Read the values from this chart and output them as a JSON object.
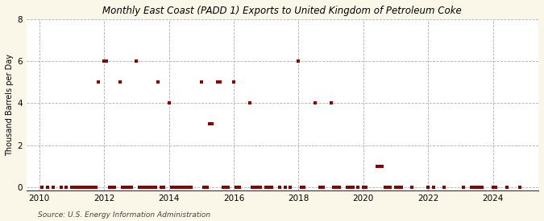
{
  "title": "East Coast (PADD 1) Exports to United Kingdom of Petroleum Coke",
  "title_prefix": "Monthly ",
  "ylabel": "Thousand Barrels per Day",
  "source": "Source: U.S. Energy Information Administration",
  "background_color": "#faf6e8",
  "plot_background_color": "#ffffff",
  "marker_color": "#8b0000",
  "marker_size": 3.5,
  "xlim": [
    2009.6,
    2025.4
  ],
  "ylim": [
    -0.15,
    8
  ],
  "yticks": [
    0,
    2,
    4,
    6,
    8
  ],
  "xticks": [
    2010,
    2012,
    2014,
    2016,
    2018,
    2020,
    2022,
    2024
  ],
  "data_points": [
    [
      2010.08,
      0
    ],
    [
      2010.25,
      0
    ],
    [
      2010.42,
      0
    ],
    [
      2010.67,
      0
    ],
    [
      2010.83,
      0
    ],
    [
      2011.0,
      0
    ],
    [
      2011.08,
      0
    ],
    [
      2011.17,
      0
    ],
    [
      2011.25,
      0
    ],
    [
      2011.33,
      0
    ],
    [
      2011.42,
      0
    ],
    [
      2011.5,
      0
    ],
    [
      2011.58,
      0
    ],
    [
      2011.67,
      0
    ],
    [
      2011.75,
      0
    ],
    [
      2011.83,
      5
    ],
    [
      2012.0,
      6
    ],
    [
      2012.08,
      6
    ],
    [
      2012.17,
      0
    ],
    [
      2012.25,
      0
    ],
    [
      2012.33,
      0
    ],
    [
      2012.5,
      5
    ],
    [
      2012.58,
      0
    ],
    [
      2012.67,
      0
    ],
    [
      2012.75,
      0
    ],
    [
      2012.83,
      0
    ],
    [
      2013.0,
      6
    ],
    [
      2013.08,
      0
    ],
    [
      2013.17,
      0
    ],
    [
      2013.25,
      0
    ],
    [
      2013.33,
      0
    ],
    [
      2013.42,
      0
    ],
    [
      2013.5,
      0
    ],
    [
      2013.58,
      0
    ],
    [
      2013.67,
      5
    ],
    [
      2013.75,
      0
    ],
    [
      2013.83,
      0
    ],
    [
      2014.0,
      4
    ],
    [
      2014.08,
      0
    ],
    [
      2014.17,
      0
    ],
    [
      2014.25,
      0
    ],
    [
      2014.33,
      0
    ],
    [
      2014.42,
      0
    ],
    [
      2014.5,
      0
    ],
    [
      2014.58,
      0
    ],
    [
      2014.67,
      0
    ],
    [
      2015.0,
      5
    ],
    [
      2015.08,
      0
    ],
    [
      2015.17,
      0
    ],
    [
      2015.25,
      3
    ],
    [
      2015.33,
      3
    ],
    [
      2015.5,
      5
    ],
    [
      2015.58,
      5
    ],
    [
      2015.67,
      0
    ],
    [
      2015.75,
      0
    ],
    [
      2015.83,
      0
    ],
    [
      2016.0,
      5
    ],
    [
      2016.08,
      0
    ],
    [
      2016.17,
      0
    ],
    [
      2016.5,
      4
    ],
    [
      2016.58,
      0
    ],
    [
      2016.67,
      0
    ],
    [
      2016.75,
      0
    ],
    [
      2016.83,
      0
    ],
    [
      2017.0,
      0
    ],
    [
      2017.08,
      0
    ],
    [
      2017.17,
      0
    ],
    [
      2017.42,
      0
    ],
    [
      2017.58,
      0
    ],
    [
      2017.75,
      0
    ],
    [
      2018.0,
      6
    ],
    [
      2018.08,
      0
    ],
    [
      2018.17,
      0
    ],
    [
      2018.5,
      4
    ],
    [
      2018.67,
      0
    ],
    [
      2018.75,
      0
    ],
    [
      2019.0,
      4
    ],
    [
      2019.08,
      0
    ],
    [
      2019.17,
      0
    ],
    [
      2019.25,
      0
    ],
    [
      2019.5,
      0
    ],
    [
      2019.58,
      0
    ],
    [
      2019.67,
      0
    ],
    [
      2019.83,
      0
    ],
    [
      2020.0,
      0
    ],
    [
      2020.08,
      0
    ],
    [
      2020.42,
      1
    ],
    [
      2020.5,
      1
    ],
    [
      2020.58,
      1
    ],
    [
      2020.67,
      0
    ],
    [
      2020.75,
      0
    ],
    [
      2020.83,
      0
    ],
    [
      2021.0,
      0
    ],
    [
      2021.08,
      0
    ],
    [
      2021.17,
      0
    ],
    [
      2021.5,
      0
    ],
    [
      2022.0,
      0
    ],
    [
      2022.17,
      0
    ],
    [
      2022.5,
      0
    ],
    [
      2023.08,
      0
    ],
    [
      2023.33,
      0
    ],
    [
      2023.42,
      0
    ],
    [
      2023.5,
      0
    ],
    [
      2023.58,
      0
    ],
    [
      2023.67,
      0
    ],
    [
      2024.0,
      0
    ],
    [
      2024.08,
      0
    ],
    [
      2024.42,
      0
    ],
    [
      2024.83,
      0
    ]
  ]
}
